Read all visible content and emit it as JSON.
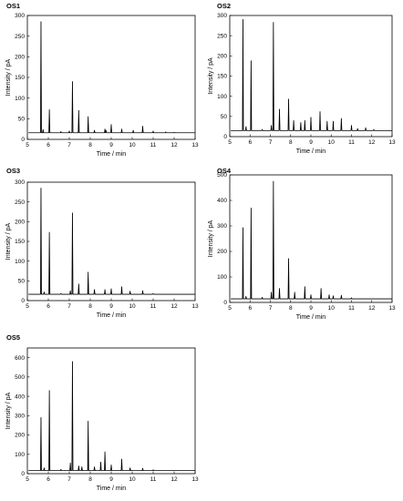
{
  "chart_data": [
    {
      "type": "line",
      "title": "OS1",
      "xlabel": "Time / min",
      "ylabel": "Intensity / pA",
      "xlim": [
        5,
        13
      ],
      "ylim": [
        0,
        300
      ],
      "xticks": [
        5,
        6,
        7,
        8,
        9,
        10,
        11,
        12,
        13
      ],
      "yticks": [
        0,
        50,
        100,
        150,
        200,
        250,
        300
      ],
      "baseline": 16,
      "peaks": [
        {
          "x": 5.65,
          "y": 285
        },
        {
          "x": 5.75,
          "y": 24
        },
        {
          "x": 6.05,
          "y": 72
        },
        {
          "x": 6.6,
          "y": 19
        },
        {
          "x": 7.0,
          "y": 20
        },
        {
          "x": 7.15,
          "y": 140
        },
        {
          "x": 7.45,
          "y": 70
        },
        {
          "x": 7.9,
          "y": 55
        },
        {
          "x": 8.2,
          "y": 22
        },
        {
          "x": 8.7,
          "y": 25
        },
        {
          "x": 8.75,
          "y": 22
        },
        {
          "x": 9.0,
          "y": 36
        },
        {
          "x": 9.5,
          "y": 25
        },
        {
          "x": 10.05,
          "y": 22
        },
        {
          "x": 10.5,
          "y": 32
        },
        {
          "x": 11.0,
          "y": 20
        },
        {
          "x": 11.6,
          "y": 18
        },
        {
          "x": 12.0,
          "y": 17
        }
      ]
    },
    {
      "type": "line",
      "title": "OS2",
      "xlabel": "Time / min",
      "ylabel": "Intensity / pA",
      "xlim": [
        5,
        13
      ],
      "ylim": [
        0,
        300
      ],
      "xticks": [
        5,
        6,
        7,
        8,
        9,
        10,
        11,
        12,
        13
      ],
      "yticks": [
        0,
        50,
        100,
        150,
        200,
        250,
        300
      ],
      "baseline": 15,
      "peaks": [
        {
          "x": 5.65,
          "y": 290
        },
        {
          "x": 5.8,
          "y": 25
        },
        {
          "x": 6.05,
          "y": 188
        },
        {
          "x": 6.6,
          "y": 18
        },
        {
          "x": 7.05,
          "y": 28
        },
        {
          "x": 7.15,
          "y": 283
        },
        {
          "x": 7.45,
          "y": 68
        },
        {
          "x": 7.9,
          "y": 93
        },
        {
          "x": 8.15,
          "y": 40
        },
        {
          "x": 8.5,
          "y": 35
        },
        {
          "x": 8.7,
          "y": 40
        },
        {
          "x": 9.0,
          "y": 48
        },
        {
          "x": 9.45,
          "y": 62
        },
        {
          "x": 9.8,
          "y": 38
        },
        {
          "x": 10.1,
          "y": 38
        },
        {
          "x": 10.5,
          "y": 45
        },
        {
          "x": 11.0,
          "y": 28
        },
        {
          "x": 11.3,
          "y": 20
        },
        {
          "x": 11.7,
          "y": 22
        },
        {
          "x": 12.1,
          "y": 18
        }
      ]
    },
    {
      "type": "line",
      "title": "OS3",
      "xlabel": "Time / min",
      "ylabel": "Intensity / pA",
      "xlim": [
        5,
        13
      ],
      "ylim": [
        0,
        300
      ],
      "xticks": [
        5,
        6,
        7,
        8,
        9,
        10,
        11,
        12,
        13
      ],
      "yticks": [
        0,
        50,
        100,
        150,
        200,
        250,
        300
      ],
      "baseline": 16,
      "peaks": [
        {
          "x": 5.65,
          "y": 285
        },
        {
          "x": 5.8,
          "y": 22
        },
        {
          "x": 6.05,
          "y": 173
        },
        {
          "x": 6.6,
          "y": 18
        },
        {
          "x": 7.05,
          "y": 25
        },
        {
          "x": 7.15,
          "y": 222
        },
        {
          "x": 7.45,
          "y": 42
        },
        {
          "x": 7.9,
          "y": 72
        },
        {
          "x": 8.2,
          "y": 28
        },
        {
          "x": 8.7,
          "y": 28
        },
        {
          "x": 9.0,
          "y": 30
        },
        {
          "x": 9.5,
          "y": 35
        },
        {
          "x": 9.9,
          "y": 24
        },
        {
          "x": 10.5,
          "y": 25
        },
        {
          "x": 11.0,
          "y": 18
        }
      ]
    },
    {
      "type": "line",
      "title": "OS4",
      "xlabel": "Time / min",
      "ylabel": "Intensity / pA",
      "xlim": [
        5,
        13
      ],
      "ylim": [
        0,
        500
      ],
      "xticks": [
        5,
        6,
        7,
        8,
        9,
        10,
        11,
        12,
        13
      ],
      "yticks": [
        0,
        100,
        200,
        300,
        400,
        500
      ],
      "baseline": 14,
      "peaks": [
        {
          "x": 5.65,
          "y": 293
        },
        {
          "x": 5.8,
          "y": 24
        },
        {
          "x": 6.05,
          "y": 370
        },
        {
          "x": 6.6,
          "y": 20
        },
        {
          "x": 7.05,
          "y": 40
        },
        {
          "x": 7.15,
          "y": 475
        },
        {
          "x": 7.45,
          "y": 55
        },
        {
          "x": 7.9,
          "y": 172
        },
        {
          "x": 8.2,
          "y": 40
        },
        {
          "x": 8.7,
          "y": 62
        },
        {
          "x": 9.0,
          "y": 30
        },
        {
          "x": 9.5,
          "y": 55
        },
        {
          "x": 9.9,
          "y": 30
        },
        {
          "x": 10.1,
          "y": 26
        },
        {
          "x": 10.5,
          "y": 28
        },
        {
          "x": 11.0,
          "y": 18
        }
      ]
    },
    {
      "type": "line",
      "title": "OS5",
      "xlabel": "Time / min",
      "ylabel": "Intensity / pA",
      "xlim": [
        5,
        13
      ],
      "ylim": [
        0,
        650
      ],
      "xticks": [
        5,
        6,
        7,
        8,
        9,
        10,
        11,
        12,
        13
      ],
      "yticks": [
        0,
        100,
        200,
        300,
        400,
        500,
        600
      ],
      "baseline": 16,
      "peaks": [
        {
          "x": 5.65,
          "y": 290
        },
        {
          "x": 5.8,
          "y": 30
        },
        {
          "x": 6.05,
          "y": 430
        },
        {
          "x": 6.6,
          "y": 22
        },
        {
          "x": 7.05,
          "y": 55
        },
        {
          "x": 7.15,
          "y": 580
        },
        {
          "x": 7.45,
          "y": 40
        },
        {
          "x": 7.6,
          "y": 35
        },
        {
          "x": 7.9,
          "y": 272
        },
        {
          "x": 8.2,
          "y": 35
        },
        {
          "x": 8.5,
          "y": 60
        },
        {
          "x": 8.7,
          "y": 113
        },
        {
          "x": 9.0,
          "y": 45
        },
        {
          "x": 9.5,
          "y": 75
        },
        {
          "x": 9.9,
          "y": 30
        },
        {
          "x": 10.5,
          "y": 28
        },
        {
          "x": 11.0,
          "y": 20
        }
      ]
    }
  ]
}
